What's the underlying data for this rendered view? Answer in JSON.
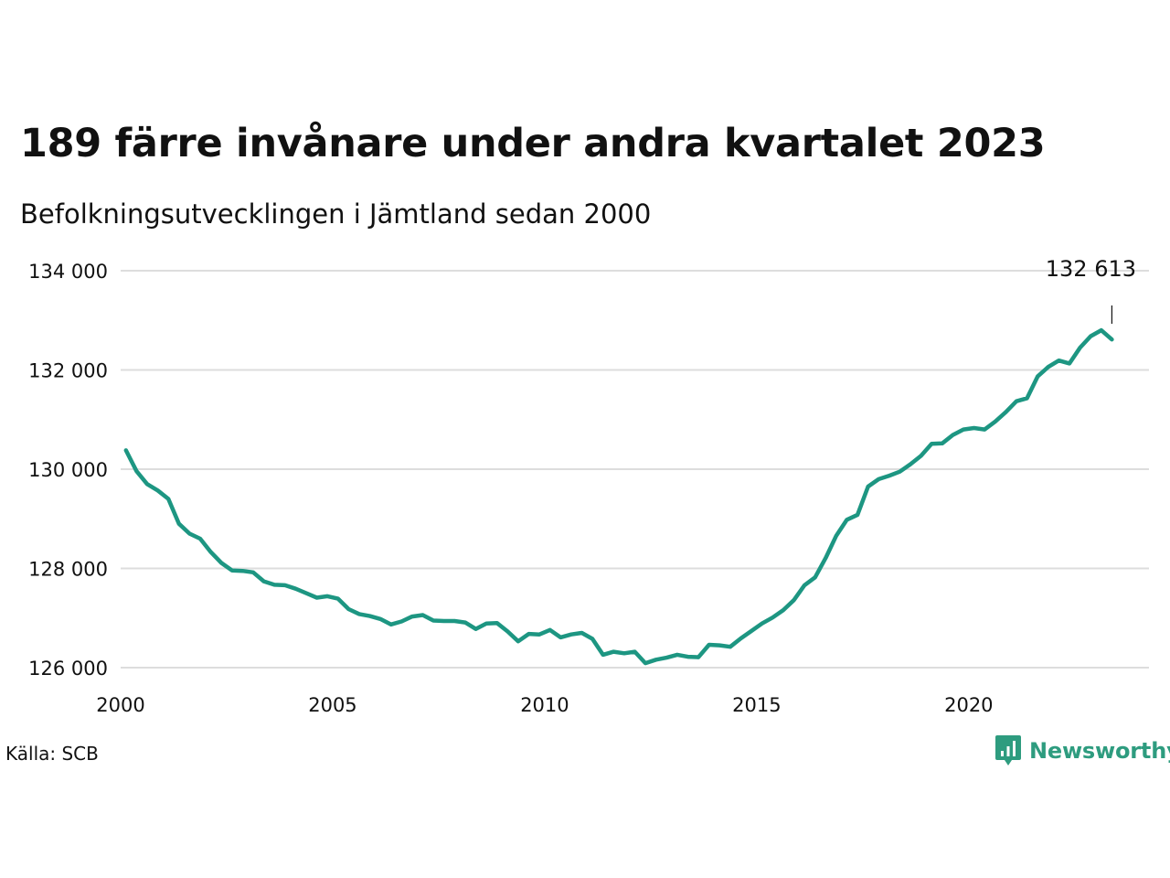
{
  "title": "189 färre invånare under andra kvartalet 2023",
  "subtitle": "Befolkningsutvecklingen i Jämtland sedan 2000",
  "source": "Källa: SCB",
  "logo_text": "Newsworthy",
  "colors": {
    "line": "#1d9682",
    "grid": "#dddddd",
    "logo": "#2e9c7f"
  },
  "chart_data": {
    "type": "line",
    "title": "189 färre invånare under andra kvartalet 2023",
    "subtitle": "Befolkningsutvecklingen i Jämtland sedan 2000",
    "xlim": [
      2000,
      2024.25
    ],
    "ylim": [
      125700,
      134000
    ],
    "x_ticks": [
      2000,
      2005,
      2010,
      2015,
      2020
    ],
    "x_tick_labels": [
      "2000",
      "2005",
      "2010",
      "2015",
      "2020"
    ],
    "y_ticks": [
      126000,
      128000,
      130000,
      132000,
      134000
    ],
    "y_tick_labels": [
      "126 000",
      "128 000",
      "130 000",
      "132 000",
      "134 000"
    ],
    "grid": "horizontal",
    "annotation": {
      "x": 2023.375,
      "y": 132613,
      "label": "132 613"
    },
    "series": [
      {
        "x": [
          2000.125,
          2000.375,
          2000.625,
          2000.875,
          2001.125,
          2001.375,
          2001.625,
          2001.875,
          2002.125,
          2002.375,
          2002.625,
          2002.875,
          2003.125,
          2003.375,
          2003.625,
          2003.875,
          2004.125,
          2004.375,
          2004.625,
          2004.875,
          2005.125,
          2005.375,
          2005.625,
          2005.875,
          2006.125,
          2006.375,
          2006.625,
          2006.875,
          2007.125,
          2007.375,
          2007.625,
          2007.875,
          2008.125,
          2008.375,
          2008.625,
          2008.875,
          2009.125,
          2009.375,
          2009.625,
          2009.875,
          2010.125,
          2010.375,
          2010.625,
          2010.875,
          2011.125,
          2011.375,
          2011.625,
          2011.875,
          2012.125,
          2012.375,
          2012.625,
          2012.875,
          2013.125,
          2013.375,
          2013.625,
          2013.875,
          2014.125,
          2014.375,
          2014.625,
          2014.875,
          2015.125,
          2015.375,
          2015.625,
          2015.875,
          2016.125,
          2016.375,
          2016.625,
          2016.875,
          2017.125,
          2017.375,
          2017.625,
          2017.875,
          2018.125,
          2018.375,
          2018.625,
          2018.875,
          2019.125,
          2019.375,
          2019.625,
          2019.875,
          2020.125,
          2020.375,
          2020.625,
          2020.875,
          2021.125,
          2021.375,
          2021.625,
          2021.875,
          2022.125,
          2022.375,
          2022.625,
          2022.875,
          2023.125,
          2023.375
        ],
        "values": [
          130380,
          129960,
          129700,
          129570,
          129400,
          128900,
          128700,
          128600,
          128330,
          128110,
          127960,
          127950,
          127920,
          127740,
          127670,
          127660,
          127590,
          127500,
          127410,
          127440,
          127390,
          127180,
          127080,
          127040,
          126980,
          126870,
          126930,
          127030,
          127060,
          126950,
          126940,
          126940,
          126910,
          126780,
          126890,
          126900,
          126730,
          126530,
          126680,
          126670,
          126760,
          126610,
          126670,
          126700,
          126580,
          126260,
          126320,
          126290,
          126320,
          126090,
          126160,
          126200,
          126260,
          126220,
          126210,
          126460,
          126450,
          126420,
          126590,
          126740,
          126890,
          127010,
          127160,
          127360,
          127660,
          127820,
          128210,
          128660,
          128980,
          129080,
          129650,
          129800,
          129870,
          129950,
          130100,
          130270,
          130510,
          130520,
          130690,
          130800,
          130830,
          130800,
          130960,
          131150,
          131370,
          131430,
          131870,
          132060,
          132190,
          132130,
          132450,
          132680,
          132800,
          132613
        ]
      }
    ]
  }
}
